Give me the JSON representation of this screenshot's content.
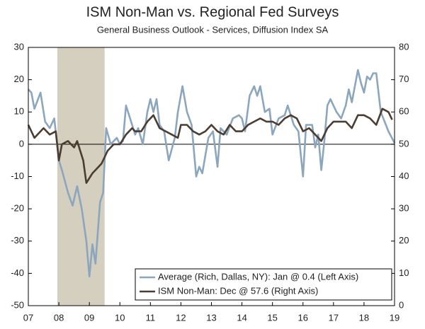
{
  "chart_data": {
    "type": "line",
    "title": "ISM Non-Man vs. Regional Fed Surveys",
    "subtitle": "General Business Outlook - Services, Diffusion Index SA",
    "xlim": [
      2007,
      2019
    ],
    "xticks": [
      {
        "value": 2007,
        "label": "07"
      },
      {
        "value": 2008,
        "label": "08"
      },
      {
        "value": 2009,
        "label": "09"
      },
      {
        "value": 2010,
        "label": "10"
      },
      {
        "value": 2011,
        "label": "11"
      },
      {
        "value": 2012,
        "label": "12"
      },
      {
        "value": 2013,
        "label": "13"
      },
      {
        "value": 2014,
        "label": "14"
      },
      {
        "value": 2015,
        "label": "15"
      },
      {
        "value": 2016,
        "label": "16"
      },
      {
        "value": 2017,
        "label": "17"
      },
      {
        "value": 2018,
        "label": "18"
      },
      {
        "value": 2019,
        "label": "19"
      }
    ],
    "ylim": [
      -50,
      30
    ],
    "yticks": [
      30,
      20,
      10,
      0,
      -10,
      -20,
      -30,
      -40,
      -50
    ],
    "y2lim": [
      0,
      80
    ],
    "y2ticks": [
      80,
      70,
      60,
      50,
      40,
      30,
      20,
      10,
      0
    ],
    "shade": {
      "from": 2007.95,
      "to": 2009.5,
      "color": "#d5cfbf"
    },
    "legend": "lower right",
    "series": [
      {
        "name": "Average (Rich, Dallas, NY): Jan @ 0.4  (Left Axis)",
        "color": "#8ba6bd",
        "x": [
          2007.0,
          2007.1,
          2007.2,
          2007.4,
          2007.55,
          2007.7,
          2007.85,
          2008.0,
          2008.1,
          2008.3,
          2008.45,
          2008.6,
          2008.75,
          2008.9,
          2009.0,
          2009.1,
          2009.2,
          2009.35,
          2009.45,
          2009.55,
          2009.7,
          2009.9,
          2010.0,
          2010.1,
          2010.2,
          2010.3,
          2010.5,
          2010.6,
          2010.75,
          2010.9,
          2011.0,
          2011.1,
          2011.2,
          2011.3,
          2011.45,
          2011.6,
          2011.8,
          2011.9,
          2012.05,
          2012.2,
          2012.35,
          2012.5,
          2012.6,
          2012.7,
          2012.9,
          2013.05,
          2013.2,
          2013.3,
          2013.5,
          2013.7,
          2013.9,
          2014.0,
          2014.1,
          2014.25,
          2014.4,
          2014.5,
          2014.6,
          2014.75,
          2014.9,
          2015.0,
          2015.2,
          2015.4,
          2015.5,
          2015.7,
          2015.85,
          2016.0,
          2016.1,
          2016.3,
          2016.4,
          2016.5,
          2016.6,
          2016.7,
          2016.8,
          2016.9,
          2017.1,
          2017.25,
          2017.4,
          2017.5,
          2017.6,
          2017.8,
          2017.9,
          2018.0,
          2018.1,
          2018.2,
          2018.3,
          2018.4,
          2018.55,
          2018.8,
          2019.0
        ],
        "values": [
          17,
          16,
          11,
          16,
          7,
          5,
          8,
          -5,
          -8,
          -15,
          -19,
          -13,
          -20,
          -30,
          -41,
          -31,
          -37,
          -18,
          -15,
          5,
          0,
          2,
          0,
          1,
          12,
          9,
          3,
          5,
          0,
          10,
          14,
          10,
          14,
          6,
          4,
          -5,
          2,
          10,
          18,
          10,
          6,
          -10,
          -7,
          -9,
          2,
          4,
          -7,
          5,
          3,
          8,
          9,
          8,
          4,
          15,
          18,
          15,
          18,
          10,
          11,
          3,
          8,
          9,
          12,
          6,
          4,
          -10,
          6,
          6,
          -1,
          3,
          -8,
          1,
          12,
          14,
          10,
          8,
          12,
          17,
          13,
          23,
          19,
          16,
          21,
          20,
          22,
          22,
          10,
          4,
          0.4
        ]
      },
      {
        "name": "ISM Non-Man: Dec @ 57.6  (Right Axis)",
        "color": "#4b3d31",
        "axis": "y2",
        "x": [
          2007.0,
          2007.2,
          2007.5,
          2007.7,
          2007.9,
          2008.0,
          2008.1,
          2008.3,
          2008.5,
          2008.6,
          2008.8,
          2008.9,
          2009.1,
          2009.3,
          2009.4,
          2009.6,
          2009.8,
          2010.0,
          2010.2,
          2010.4,
          2010.5,
          2010.7,
          2010.9,
          2011.1,
          2011.3,
          2011.5,
          2011.7,
          2011.9,
          2012.0,
          2012.2,
          2012.4,
          2012.6,
          2012.8,
          2013.0,
          2013.2,
          2013.4,
          2013.6,
          2013.8,
          2014.0,
          2014.2,
          2014.4,
          2014.6,
          2014.8,
          2015.0,
          2015.2,
          2015.4,
          2015.6,
          2015.8,
          2016.0,
          2016.2,
          2016.4,
          2016.6,
          2016.8,
          2017.0,
          2017.2,
          2017.4,
          2017.6,
          2017.8,
          2018.0,
          2018.2,
          2018.4,
          2018.6,
          2018.8,
          2018.92
        ],
        "values": [
          56,
          52,
          55,
          53,
          54,
          45,
          50,
          51,
          49,
          51,
          45,
          38,
          41,
          43,
          44,
          48,
          50,
          50,
          53,
          55,
          54,
          54,
          57,
          59,
          55,
          54,
          53,
          52,
          56,
          56,
          54,
          53,
          54,
          56,
          54,
          53,
          56,
          54,
          54,
          56,
          57,
          58,
          57,
          57,
          56,
          58,
          59,
          58,
          54,
          55,
          53,
          51,
          55,
          57,
          57,
          57,
          55,
          59,
          59,
          58,
          56,
          61,
          60,
          57.6
        ]
      }
    ]
  }
}
